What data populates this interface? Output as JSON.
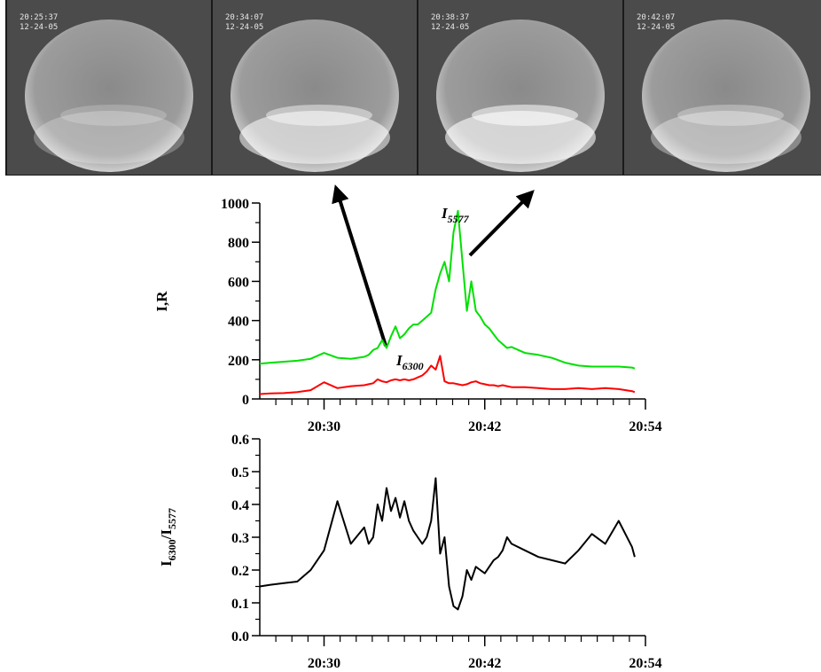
{
  "images": [
    {
      "time": "20:25:37",
      "date": "12-24-05"
    },
    {
      "time": "20:34:07",
      "date": "12-24-05"
    },
    {
      "time": "20:38:37",
      "date": "12-24-05"
    },
    {
      "time": "20:42:07",
      "date": "12-24-05"
    }
  ],
  "chart_data": [
    {
      "type": "line",
      "ylabel": [
        "I,R"
      ],
      "x": [
        "20:25:12",
        "20:26:00",
        "20:27:00",
        "20:28:00",
        "20:29:00",
        "20:30:00",
        "20:31:00",
        "20:32:00",
        "20:33:00",
        "20:33:20",
        "20:33:40",
        "20:34:00",
        "20:34:20",
        "20:34:40",
        "20:35:00",
        "20:35:20",
        "20:35:40",
        "20:36:00",
        "20:36:20",
        "20:36:40",
        "20:37:00",
        "20:37:20",
        "20:37:40",
        "20:38:00",
        "20:38:20",
        "20:38:40",
        "20:39:00",
        "20:39:20",
        "20:39:40",
        "20:40:00",
        "20:40:20",
        "20:40:40",
        "20:41:00",
        "20:41:20",
        "20:41:40",
        "20:42:00",
        "20:42:20",
        "20:42:40",
        "20:43:00",
        "20:43:20",
        "20:43:40",
        "20:44:00",
        "20:45:00",
        "20:46:00",
        "20:47:00",
        "20:48:00",
        "20:49:00",
        "20:50:00",
        "20:51:00",
        "20:52:00",
        "20:53:00",
        "20:53:12"
      ],
      "xlim": [
        "20:25:12",
        "20:54:00"
      ],
      "xticks": [
        "20:30",
        "20:42",
        "20:54"
      ],
      "xminorticks": [
        "20:26:24",
        "20:27:36",
        "20:28:48",
        "20:31:12",
        "20:32:24",
        "20:33:36",
        "20:34:48",
        "20:36:00",
        "20:37:12",
        "20:38:24",
        "20:39:36",
        "20:40:48",
        "20:43:12",
        "20:44:24",
        "20:45:36",
        "20:46:48",
        "20:48:00",
        "20:49:12",
        "20:50:24",
        "20:51:36",
        "20:52:48"
      ],
      "ylim": [
        0,
        1000
      ],
      "yticks": [
        0,
        200,
        400,
        600,
        800,
        1000
      ],
      "yminorticks": [
        100,
        300,
        500,
        700,
        900
      ],
      "series": [
        {
          "name": "I",
          "name_sub": "5577",
          "color": "#00e000",
          "values": [
            180,
            185,
            190,
            195,
            205,
            235,
            210,
            205,
            215,
            225,
            250,
            260,
            300,
            260,
            320,
            370,
            310,
            330,
            360,
            380,
            380,
            400,
            420,
            440,
            560,
            640,
            700,
            600,
            850,
            960,
            700,
            450,
            600,
            450,
            420,
            380,
            360,
            330,
            300,
            280,
            260,
            265,
            235,
            225,
            210,
            185,
            170,
            165,
            165,
            165,
            160,
            155
          ]
        },
        {
          "name": "I",
          "name_sub": "6300",
          "color": "#ff0000",
          "values": [
            25,
            28,
            30,
            35,
            45,
            85,
            55,
            65,
            70,
            75,
            80,
            100,
            90,
            85,
            95,
            100,
            95,
            100,
            95,
            100,
            110,
            120,
            140,
            170,
            150,
            220,
            90,
            80,
            80,
            75,
            70,
            75,
            85,
            90,
            80,
            75,
            70,
            70,
            65,
            70,
            65,
            60,
            60,
            55,
            50,
            50,
            55,
            50,
            55,
            50,
            40,
            35
          ]
        }
      ]
    },
    {
      "type": "line",
      "ylabel": [
        "I",
        "6300",
        "/I",
        "5577"
      ],
      "x": [
        "20:25:12",
        "20:26:00",
        "20:27:00",
        "20:28:00",
        "20:29:00",
        "20:30:00",
        "20:31:00",
        "20:32:00",
        "20:33:00",
        "20:33:20",
        "20:33:40",
        "20:34:00",
        "20:34:20",
        "20:34:40",
        "20:35:00",
        "20:35:20",
        "20:35:40",
        "20:36:00",
        "20:36:20",
        "20:36:40",
        "20:37:00",
        "20:37:20",
        "20:37:40",
        "20:38:00",
        "20:38:20",
        "20:38:40",
        "20:39:00",
        "20:39:20",
        "20:39:40",
        "20:40:00",
        "20:40:20",
        "20:40:40",
        "20:41:00",
        "20:41:20",
        "20:41:40",
        "20:42:00",
        "20:42:20",
        "20:42:40",
        "20:43:00",
        "20:43:20",
        "20:43:40",
        "20:44:00",
        "20:45:00",
        "20:46:00",
        "20:47:00",
        "20:48:00",
        "20:49:00",
        "20:50:00",
        "20:51:00",
        "20:52:00",
        "20:53:00",
        "20:53:12"
      ],
      "xlim": [
        "20:25:12",
        "20:54:00"
      ],
      "xticks": [
        "20:30",
        "20:42",
        "20:54"
      ],
      "xminorticks": [
        "20:26:24",
        "20:27:36",
        "20:28:48",
        "20:31:12",
        "20:32:24",
        "20:33:36",
        "20:34:48",
        "20:36:00",
        "20:37:12",
        "20:38:24",
        "20:39:36",
        "20:40:48",
        "20:43:12",
        "20:44:24",
        "20:45:36",
        "20:46:48",
        "20:48:00",
        "20:49:12",
        "20:50:24",
        "20:51:36",
        "20:52:48"
      ],
      "ylim": [
        0,
        0.6
      ],
      "yticks": [
        {
          "value": 0,
          "label": "0.0"
        },
        0.1,
        0.2,
        0.3,
        0.4,
        0.5,
        0.6
      ],
      "yminorticks": [
        0.05,
        0.15,
        0.25,
        0.35,
        0.45,
        0.55
      ],
      "series": [
        {
          "color": "#000000",
          "values": [
            0.15,
            0.155,
            0.16,
            0.165,
            0.2,
            0.26,
            0.41,
            0.28,
            0.33,
            0.28,
            0.3,
            0.4,
            0.35,
            0.45,
            0.38,
            0.42,
            0.36,
            0.41,
            0.35,
            0.32,
            0.3,
            0.28,
            0.3,
            0.35,
            0.48,
            0.25,
            0.3,
            0.15,
            0.09,
            0.08,
            0.12,
            0.2,
            0.17,
            0.21,
            0.2,
            0.19,
            0.21,
            0.23,
            0.24,
            0.26,
            0.3,
            0.28,
            0.26,
            0.24,
            0.23,
            0.22,
            0.26,
            0.31,
            0.28,
            0.35,
            0.27,
            0.24
          ]
        }
      ]
    }
  ]
}
